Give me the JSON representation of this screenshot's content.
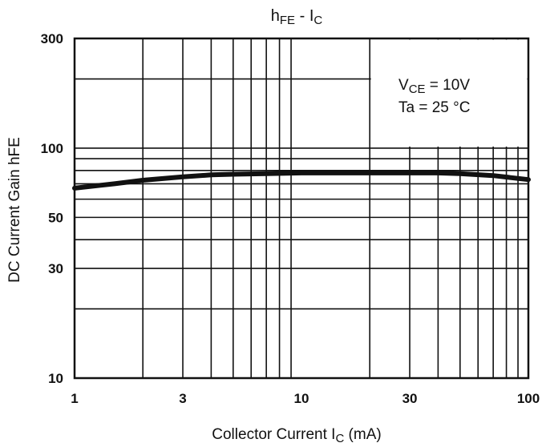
{
  "chart_data": {
    "type": "line",
    "title": {
      "main": "h",
      "sub": "FE",
      "sep": " - I",
      "sub2": "C"
    },
    "xlabel": {
      "main": "Collector Current I",
      "sub": "C",
      "tail": " (mA)"
    },
    "ylabel": "DC Current Gain hFE",
    "x_scale": "log",
    "y_scale": "log",
    "xlim": [
      1,
      100
    ],
    "ylim": [
      10,
      300
    ],
    "x_ticks": [
      {
        "value": 1,
        "label": "1"
      },
      {
        "value": 3,
        "label": "3"
      },
      {
        "value": 10,
        "label": "10"
      },
      {
        "value": 30,
        "label": "30"
      },
      {
        "value": 100,
        "label": "100"
      }
    ],
    "y_ticks": [
      {
        "value": 10,
        "label": "10"
      },
      {
        "value": 30,
        "label": "30"
      },
      {
        "value": 50,
        "label": "50"
      },
      {
        "value": 100,
        "label": "100"
      },
      {
        "value": 300,
        "label": "300"
      }
    ],
    "annotations": {
      "line1": {
        "main": "V",
        "sub": "CE",
        "tail": " = 10V"
      },
      "line2": "Ta = 25 °C"
    },
    "grid": true,
    "series": [
      {
        "x": [
          1,
          1.5,
          2,
          3,
          4,
          5,
          7,
          10,
          15,
          20,
          30,
          40,
          50,
          70,
          100
        ],
        "y": [
          67,
          70,
          72.5,
          75,
          76.5,
          77,
          77.5,
          78,
          78,
          78,
          78,
          78,
          77.5,
          76,
          73
        ]
      }
    ]
  }
}
